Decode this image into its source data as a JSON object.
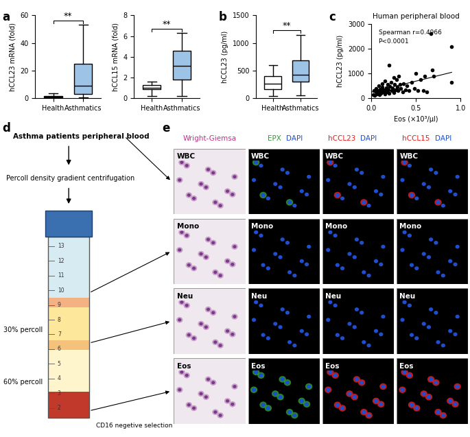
{
  "chart_data": [
    {
      "type": "box",
      "categories": [
        "Health",
        "Asthmatics"
      ],
      "ylabel": "hCCL23 mRNA (fold)",
      "boxes": [
        {
          "whislo": 0,
          "q1": 0.5,
          "med": 1,
          "q3": 1.8,
          "whishi": 3.5
        },
        {
          "whislo": 0.5,
          "q1": 3,
          "med": 9,
          "q3": 25,
          "whishi": 53
        }
      ],
      "colors": [
        "#ffffff",
        "#9dc3e6"
      ],
      "ylim": [
        0,
        60
      ],
      "yticks": [
        0,
        20,
        40,
        60
      ],
      "significance": "**"
    },
    {
      "type": "box",
      "categories": [
        "Health",
        "Asthmatics"
      ],
      "ylabel": "hCCL15 mRNA (fold)",
      "boxes": [
        {
          "whislo": 0.2,
          "q1": 0.85,
          "med": 1.0,
          "q3": 1.25,
          "whishi": 1.6
        },
        {
          "whislo": 0.2,
          "q1": 1.8,
          "med": 3.1,
          "q3": 4.6,
          "whishi": 6.3
        }
      ],
      "colors": [
        "#ffffff",
        "#9dc3e6"
      ],
      "ylim": [
        0,
        8
      ],
      "yticks": [
        0,
        2,
        4,
        6,
        8
      ],
      "significance": "**"
    },
    {
      "type": "box",
      "categories": [
        "Health",
        "Asthmatics"
      ],
      "ylabel": "hCCL23 (pg/ml)",
      "boxes": [
        {
          "whislo": 40,
          "q1": 170,
          "med": 260,
          "q3": 400,
          "whishi": 600
        },
        {
          "whislo": 50,
          "q1": 300,
          "med": 420,
          "q3": 680,
          "whishi": 1150
        }
      ],
      "colors": [
        "#ffffff",
        "#9dc3e6"
      ],
      "ylim": [
        0,
        1500
      ],
      "yticks": [
        0,
        500,
        1000,
        1500
      ],
      "significance": "**"
    },
    {
      "type": "scatter",
      "title": "Human peripheral blood",
      "xlabel": "Eos (×10³/μl)",
      "ylabel": "hCCL23 (pg/ml)",
      "annotations": [
        "Spearman r=0.4966",
        "P<0.0001"
      ],
      "color": "#000000",
      "x": [
        0.02,
        0.03,
        0.04,
        0.05,
        0.05,
        0.06,
        0.07,
        0.08,
        0.08,
        0.09,
        0.1,
        0.1,
        0.11,
        0.12,
        0.12,
        0.13,
        0.14,
        0.15,
        0.15,
        0.16,
        0.17,
        0.18,
        0.18,
        0.19,
        0.2,
        0.2,
        0.21,
        0.22,
        0.23,
        0.24,
        0.25,
        0.25,
        0.26,
        0.27,
        0.28,
        0.29,
        0.3,
        0.31,
        0.32,
        0.33,
        0.35,
        0.36,
        0.38,
        0.4,
        0.42,
        0.45,
        0.48,
        0.5,
        0.52,
        0.55,
        0.58,
        0.6,
        0.62,
        0.67,
        0.68,
        0.7,
        0.9,
        0.9
      ],
      "values": [
        150,
        300,
        120,
        250,
        400,
        180,
        320,
        220,
        500,
        150,
        280,
        380,
        200,
        450,
        600,
        250,
        350,
        180,
        700,
        300,
        420,
        250,
        550,
        330,
        1350,
        200,
        480,
        650,
        300,
        400,
        850,
        220,
        550,
        350,
        750,
        450,
        300,
        900,
        550,
        400,
        250,
        600,
        350,
        500,
        300,
        650,
        400,
        1000,
        300,
        750,
        320,
        900,
        250,
        2600,
        1150,
        900,
        2080,
        650
      ],
      "fit_line": {
        "x": [
          0.0,
          0.9
        ],
        "y": [
          250,
          1050
        ]
      },
      "xlim": [
        0.0,
        1.0
      ],
      "xticks": [
        0.0,
        0.5,
        1.0
      ],
      "ylim": [
        0,
        3000
      ],
      "yticks": [
        0,
        1000,
        2000,
        3000
      ]
    }
  ],
  "panel_labels": [
    "a",
    "b",
    "c",
    "d",
    "e"
  ],
  "diagram": {
    "source": "Asthma patients peripheral blood",
    "step": "Percoll density gradient centrifugation",
    "layers": [
      "30% percoll",
      "60% percoll"
    ],
    "tube_marks": [
      2,
      3,
      4,
      5,
      6,
      7,
      8,
      9,
      10,
      11,
      12,
      13
    ],
    "selection": "CD16 negetive selection"
  },
  "microscopy": {
    "rows": [
      "WBC",
      "Mono",
      "Neu",
      "Eos"
    ],
    "positive_rows": [
      "WBC",
      "Eos"
    ],
    "columns": [
      {
        "stain": "Wright-Giemsa",
        "color": "#c0308a"
      },
      {
        "stain": "EPX",
        "color": "#2ca02c",
        "counterstain": "DAPI",
        "counter_color": "#1f4fd0"
      },
      {
        "stain": "hCCL23",
        "color": "#e02020",
        "counterstain": "DAPI",
        "counter_color": "#1f4fd0"
      },
      {
        "stain": "hCCL15",
        "color": "#e02020",
        "counterstain": "DAPI",
        "counter_color": "#1f4fd0"
      }
    ]
  }
}
